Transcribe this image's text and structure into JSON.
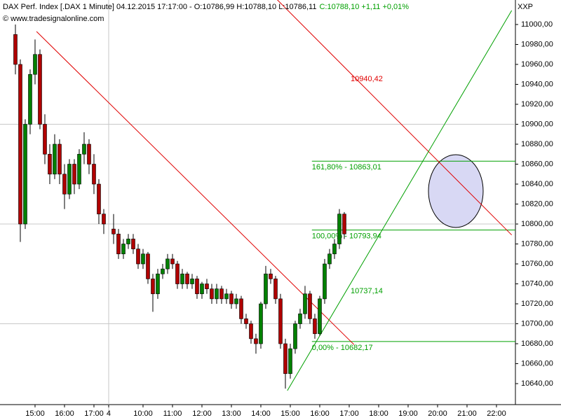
{
  "chart_data": {
    "type": "candlestick",
    "title": "DAX Perf. Index [.DAX  1 Minute] 04.12.2015 17:17:00 - O:10786,99 H:10788,10 L:10786,11",
    "subtitle": "C:10788,10 +1,11 +0,01%",
    "copyright": "© www.tradesignalonline.com",
    "axis_label": "XXP",
    "up_color": "#008000",
    "down_color": "#b00000",
    "x": [
      0,
      1,
      2,
      3,
      4,
      5,
      6,
      7,
      8,
      9,
      10,
      11,
      12,
      13,
      14,
      15,
      16,
      17,
      18,
      20,
      21,
      22,
      23,
      24,
      25,
      26,
      27,
      28,
      29,
      30,
      31,
      32,
      33,
      34,
      35,
      36,
      37,
      38,
      39,
      40,
      41,
      42,
      43,
      44,
      45,
      46,
      47,
      48,
      49,
      50,
      51,
      52,
      53,
      54,
      55,
      56,
      57,
      58,
      59,
      60,
      61,
      62,
      63,
      64,
      65,
      66,
      67
    ],
    "open": [
      10990,
      10960,
      10800,
      10900,
      10950,
      10970,
      10900,
      10870,
      10850,
      10880,
      10850,
      10830,
      10860,
      10840,
      10870,
      10880,
      10860,
      10840,
      10810,
      10795,
      10790,
      10770,
      10780,
      10785,
      10775,
      10760,
      10770,
      10745,
      10730,
      10750,
      10755,
      10765,
      10760,
      10740,
      10750,
      10740,
      10745,
      10730,
      10740,
      10735,
      10725,
      10735,
      10725,
      10730,
      10720,
      10725,
      10705,
      10700,
      10685,
      10680,
      10720,
      10750,
      10745,
      10725,
      10680,
      10650,
      10675,
      10700,
      10710,
      10730,
      10705,
      10690,
      10725,
      10760,
      10770,
      10780,
      10810
    ],
    "high": [
      11000,
      10965,
      10905,
      10955,
      10985,
      10975,
      10910,
      10880,
      10890,
      10885,
      10860,
      10865,
      10865,
      10875,
      10892,
      10885,
      10870,
      10845,
      10815,
      10810,
      10795,
      10785,
      10790,
      10790,
      10780,
      10775,
      10772,
      10750,
      10755,
      10760,
      10770,
      10770,
      10763,
      10755,
      10752,
      10750,
      10748,
      10742,
      10745,
      10740,
      10740,
      10738,
      10735,
      10733,
      10730,
      10728,
      10710,
      10703,
      10690,
      10722,
      10758,
      10755,
      10748,
      10730,
      10685,
      10680,
      10703,
      10715,
      10738,
      10733,
      10710,
      10728,
      10765,
      10775,
      10785,
      10815,
      10812
    ],
    "low": [
      10950,
      10782,
      10795,
      10890,
      10940,
      10895,
      10860,
      10840,
      10845,
      10840,
      10815,
      10825,
      10830,
      10835,
      10860,
      10850,
      10830,
      10800,
      10790,
      10780,
      10765,
      10765,
      10775,
      10770,
      10755,
      10755,
      10740,
      10712,
      10725,
      10745,
      10750,
      10755,
      10735,
      10735,
      10735,
      10735,
      10725,
      10725,
      10730,
      10720,
      10720,
      10720,
      10720,
      10715,
      10715,
      10700,
      10695,
      10680,
      10670,
      10675,
      10715,
      10740,
      10720,
      10675,
      10635,
      10645,
      10670,
      10695,
      10705,
      10700,
      10685,
      10688,
      10720,
      10755,
      10765,
      10775,
      10785
    ],
    "close": [
      10960,
      10800,
      10900,
      10950,
      10970,
      10900,
      10870,
      10850,
      10880,
      10850,
      10830,
      10860,
      10840,
      10870,
      10880,
      10860,
      10840,
      10810,
      10800,
      10790,
      10770,
      10780,
      10785,
      10775,
      10760,
      10770,
      10745,
      10730,
      10750,
      10755,
      10765,
      10760,
      10740,
      10750,
      10740,
      10745,
      10730,
      10740,
      10735,
      10725,
      10735,
      10725,
      10730,
      10720,
      10725,
      10705,
      10700,
      10685,
      10680,
      10720,
      10750,
      10745,
      10725,
      10680,
      10650,
      10675,
      10700,
      10710,
      10730,
      10705,
      10690,
      10725,
      10760,
      10770,
      10780,
      10810,
      10790
    ],
    "xlim": [
      -3.14,
      101.86
    ],
    "ylim": [
      10618.97,
      11024.56
    ],
    "xticks": [
      {
        "value": 4,
        "label": "15:00"
      },
      {
        "value": 10,
        "label": "16:00"
      },
      {
        "value": 16,
        "label": "17:00"
      },
      {
        "value": 19,
        "label": "4"
      },
      {
        "value": 26,
        "label": "10:00"
      },
      {
        "value": 32,
        "label": "11:00"
      },
      {
        "value": 38,
        "label": "12:00"
      },
      {
        "value": 44,
        "label": "13:00"
      },
      {
        "value": 50,
        "label": "14:00"
      },
      {
        "value": 56,
        "label": "15:00"
      },
      {
        "value": 62,
        "label": "16:00"
      },
      {
        "value": 68,
        "label": "17:00"
      },
      {
        "value": 74,
        "label": "18:00"
      },
      {
        "value": 80,
        "label": "19:00"
      },
      {
        "value": 86,
        "label": "20:00"
      },
      {
        "value": 92,
        "label": "21:00"
      },
      {
        "value": 98,
        "label": "22:00"
      }
    ],
    "yticks": [
      {
        "value": 10640,
        "label": "10640,00"
      },
      {
        "value": 10660,
        "label": "10660,00"
      },
      {
        "value": 10680,
        "label": "10680,00"
      },
      {
        "value": 10700,
        "label": "10700,00"
      },
      {
        "value": 10720,
        "label": "10720,00"
      },
      {
        "value": 10740,
        "label": "10740,00"
      },
      {
        "value": 10760,
        "label": "10760,00"
      },
      {
        "value": 10780,
        "label": "10780,00"
      },
      {
        "value": 10800,
        "label": "10800,00"
      },
      {
        "value": 10820,
        "label": "10820,00"
      },
      {
        "value": 10840,
        "label": "10840,00"
      },
      {
        "value": 10860,
        "label": "10860,00"
      },
      {
        "value": 10880,
        "label": "10880,00"
      },
      {
        "value": 10900,
        "label": "10900,00"
      },
      {
        "value": 10920,
        "label": "10920,00"
      },
      {
        "value": 10940,
        "label": "10940,00"
      },
      {
        "value": 10960,
        "label": "10960,00"
      },
      {
        "value": 10980,
        "label": "10980,00"
      },
      {
        "value": 11000,
        "label": "11000,00"
      }
    ],
    "grid_lines": [
      10700,
      10800,
      10900
    ],
    "day_break": 19,
    "trendlines": [
      {
        "color": "#e00000",
        "x": [
          4.3,
          69
        ],
        "y": [
          10993,
          10679
        ]
      },
      {
        "color": "#e00000",
        "x": [
          53.3,
          101.1
        ],
        "y": [
          11025,
          10789
        ],
        "label": "10940,42"
      },
      {
        "color": "#00a000",
        "x": [
          55.4,
          101.1
        ],
        "y": [
          10633,
          11014
        ],
        "label": "10737,14"
      }
    ],
    "levels": [
      {
        "value": 10863.01,
        "label": "161,80% - 10863,01"
      },
      {
        "value": 10793.94,
        "label": "100,00% - 10793,94"
      },
      {
        "value": 10682.17,
        "label": "0,00% - 10682,17"
      }
    ],
    "levels_start": 60.4,
    "levels_color": "#00a000"
  }
}
